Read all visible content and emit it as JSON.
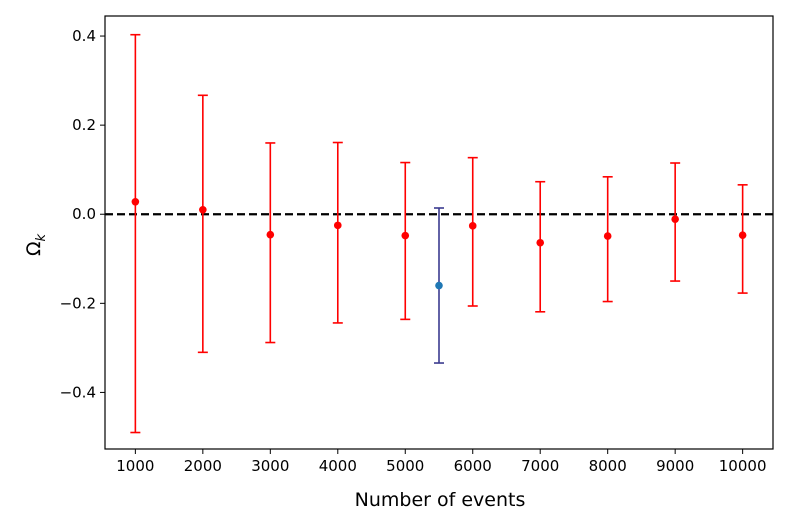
{
  "chart_data": {
    "type": "scatter",
    "xlabel": "Number of events",
    "ylabel_main": "Ω",
    "ylabel_sub": "k",
    "xticks": [
      1000,
      2000,
      3000,
      4000,
      5000,
      6000,
      7000,
      8000,
      9000,
      10000
    ],
    "xtick_labels": [
      "1000",
      "2000",
      "3000",
      "4000",
      "5000",
      "6000",
      "7000",
      "8000",
      "9000",
      "10000"
    ],
    "yticks": [
      -0.4,
      -0.2,
      0.0,
      0.2,
      0.4
    ],
    "ytick_labels": [
      "−0.4",
      "−0.2",
      "0.0",
      "0.2",
      "0.4"
    ],
    "xlim": [
      550,
      10450
    ],
    "ylim": [
      -0.527,
      0.445
    ],
    "reference_line": {
      "y": 0.0,
      "style": "dashed",
      "color": "#000000"
    },
    "grid": false,
    "series": [
      {
        "color": "#ff0000",
        "points": [
          {
            "x": 1000,
            "y": 0.028,
            "y_low": -0.49,
            "y_high": 0.403
          },
          {
            "x": 2000,
            "y": 0.01,
            "y_low": -0.31,
            "y_high": 0.267
          },
          {
            "x": 3000,
            "y": -0.046,
            "y_low": -0.288,
            "y_high": 0.16
          },
          {
            "x": 4000,
            "y": -0.025,
            "y_low": -0.244,
            "y_high": 0.161
          },
          {
            "x": 5000,
            "y": -0.048,
            "y_low": -0.236,
            "y_high": 0.116
          },
          {
            "x": 6000,
            "y": -0.026,
            "y_low": -0.206,
            "y_high": 0.127
          },
          {
            "x": 7000,
            "y": -0.064,
            "y_low": -0.219,
            "y_high": 0.073
          },
          {
            "x": 8000,
            "y": -0.049,
            "y_low": -0.196,
            "y_high": 0.084
          },
          {
            "x": 9000,
            "y": -0.011,
            "y_low": -0.15,
            "y_high": 0.115
          },
          {
            "x": 10000,
            "y": -0.047,
            "y_low": -0.177,
            "y_high": 0.066
          }
        ]
      },
      {
        "color": "#1f77b4",
        "error_color": "#3b3b8f",
        "points": [
          {
            "x": 5500,
            "y": -0.16,
            "y_low": -0.334,
            "y_high": 0.014
          }
        ]
      }
    ]
  }
}
